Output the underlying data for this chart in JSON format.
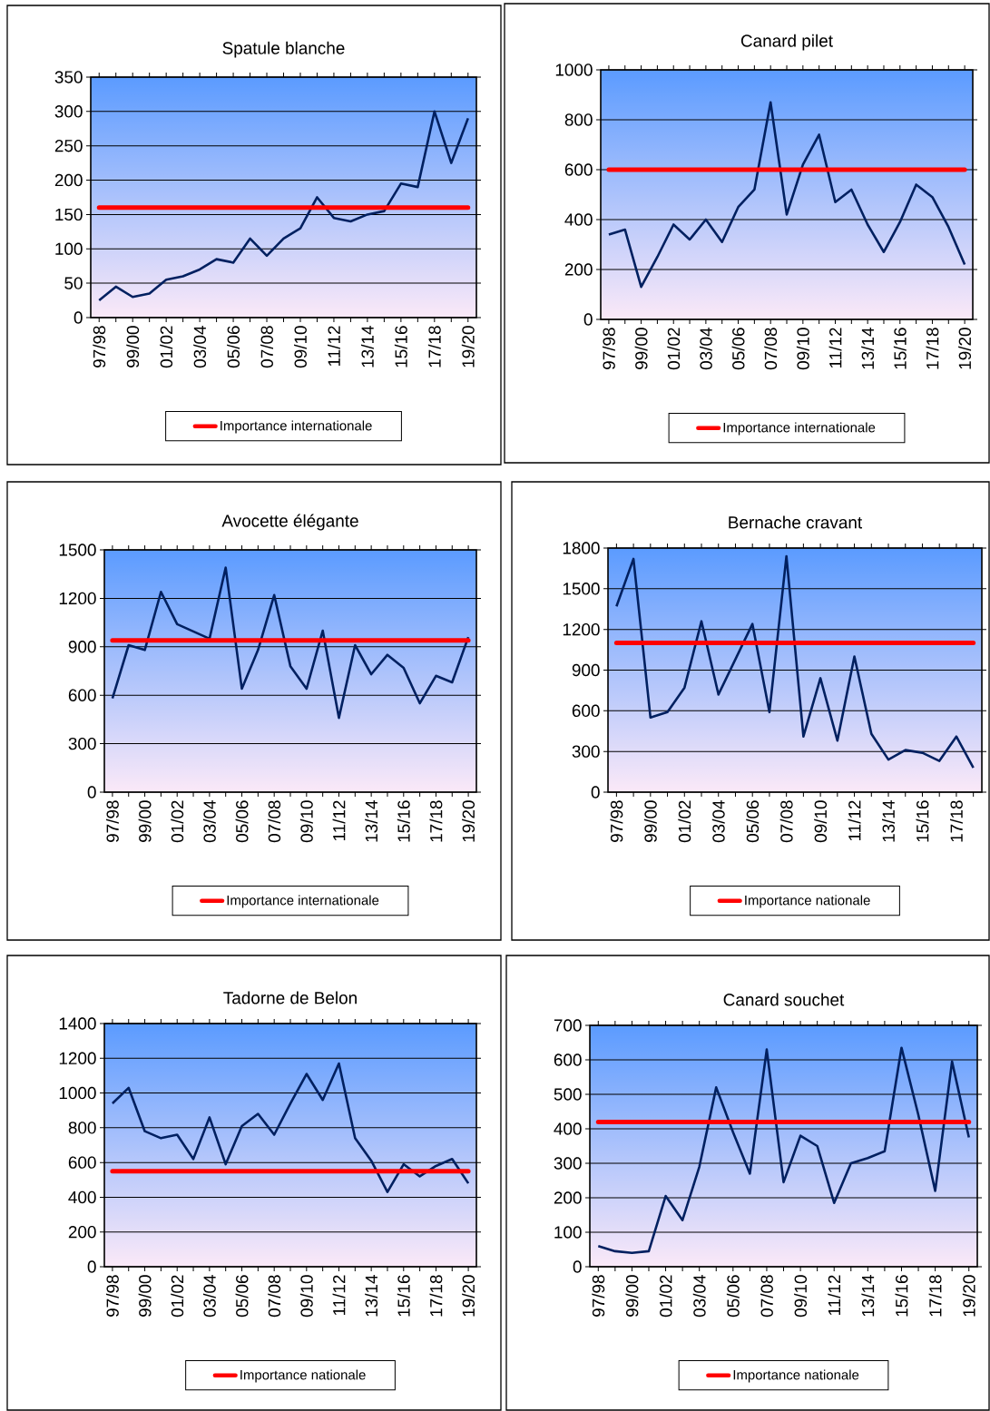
{
  "chart_data": [
    {
      "type": "line",
      "title": "Spatule blanche",
      "categories": [
        "97/98",
        null,
        "99/00",
        null,
        "01/02",
        null,
        "03/04",
        null,
        "05/06",
        null,
        "07/08",
        null,
        "09/10",
        null,
        "11/12",
        null,
        "13/14",
        null,
        "15/16",
        null,
        "17/18",
        null,
        "19/20"
      ],
      "series": [
        {
          "color": "#002060",
          "values": [
            25,
            45,
            30,
            35,
            55,
            60,
            70,
            85,
            80,
            115,
            90,
            115,
            130,
            175,
            145,
            140,
            150,
            155,
            195,
            190,
            300,
            225,
            290
          ]
        }
      ],
      "ylim": [
        0,
        350
      ],
      "yticks": [
        0,
        50,
        100,
        150,
        200,
        250,
        300,
        350
      ],
      "grid": "y",
      "legend": "bottom",
      "ref_lines": [
        {
          "axis": "y",
          "value": 160,
          "label": "Importance internationale",
          "color": "#ff0000"
        }
      ]
    },
    {
      "type": "line",
      "title": "Canard  pilet",
      "categories": [
        "97/98",
        null,
        "99/00",
        null,
        "01/02",
        null,
        "03/04",
        null,
        "05/06",
        null,
        "07/08",
        null,
        "09/10",
        null,
        "11/12",
        null,
        "13/14",
        null,
        "15/16",
        null,
        "17/18",
        null,
        "19/20"
      ],
      "series": [
        {
          "color": "#002060",
          "values": [
            340,
            360,
            130,
            250,
            380,
            320,
            400,
            310,
            450,
            520,
            870,
            420,
            620,
            740,
            470,
            520,
            380,
            270,
            390,
            540,
            490,
            370,
            220
          ]
        }
      ],
      "ylim": [
        0,
        1000
      ],
      "yticks": [
        0,
        200,
        400,
        600,
        800,
        1000
      ],
      "grid": "y",
      "legend": "bottom",
      "ref_lines": [
        {
          "axis": "y",
          "value": 600,
          "label": "Importance internationale",
          "color": "#ff0000"
        }
      ]
    },
    {
      "type": "line",
      "title": "Avocette  élégante",
      "categories": [
        "97/98",
        null,
        "99/00",
        null,
        "01/02",
        null,
        "03/04",
        null,
        "05/06",
        null,
        "07/08",
        null,
        "09/10",
        null,
        "11/12",
        null,
        "13/14",
        null,
        "15/16",
        null,
        "17/18",
        null,
        "19/20"
      ],
      "series": [
        {
          "color": "#002060",
          "values": [
            580,
            910,
            880,
            1240,
            1040,
            null,
            950,
            1390,
            640,
            880,
            1220,
            780,
            640,
            1000,
            460,
            910,
            730,
            850,
            770,
            550,
            720,
            680,
            960
          ]
        }
      ],
      "ylim": [
        0,
        1500
      ],
      "yticks": [
        0,
        300,
        600,
        900,
        1200,
        1500
      ],
      "grid": "y",
      "legend": "bottom",
      "ref_lines": [
        {
          "axis": "y",
          "value": 940,
          "label": "Importance internationale",
          "color": "#ff0000"
        }
      ]
    },
    {
      "type": "line",
      "title": "Bernache  cravant",
      "categories": [
        "97/98",
        null,
        "99/00",
        null,
        "01/02",
        null,
        "03/04",
        null,
        "05/06",
        null,
        "07/08",
        null,
        "09/10",
        null,
        "11/12",
        null,
        "13/14",
        null,
        "15/16",
        null,
        "17/18",
        null
      ],
      "series": [
        {
          "color": "#002060",
          "values": [
            1370,
            1720,
            550,
            590,
            770,
            1260,
            720,
            980,
            1240,
            590,
            1740,
            410,
            840,
            380,
            1000,
            430,
            240,
            310,
            290,
            230,
            410,
            180
          ]
        }
      ],
      "ylim": [
        0,
        1800
      ],
      "yticks": [
        0,
        300,
        600,
        900,
        1200,
        1500,
        1800
      ],
      "grid": "y",
      "legend": "bottom",
      "ref_lines": [
        {
          "axis": "y",
          "value": 1100,
          "label": "Importance nationale",
          "color": "#ff0000"
        }
      ]
    },
    {
      "type": "line",
      "title": "Tadorne  de Belon",
      "categories": [
        "97/98",
        null,
        "99/00",
        null,
        "01/02",
        null,
        "03/04",
        null,
        "05/06",
        null,
        "07/08",
        null,
        "09/10",
        null,
        "11/12",
        null,
        "13/14",
        null,
        "15/16",
        null,
        "17/18",
        null,
        "19/20"
      ],
      "series": [
        {
          "color": "#002060",
          "values": [
            940,
            1030,
            780,
            740,
            760,
            620,
            860,
            590,
            810,
            880,
            760,
            940,
            1110,
            960,
            1170,
            740,
            610,
            430,
            590,
            520,
            580,
            620,
            480
          ]
        }
      ],
      "ylim": [
        0,
        1400
      ],
      "yticks": [
        0,
        200,
        400,
        600,
        800,
        1000,
        1200,
        1400
      ],
      "grid": "y",
      "legend": "bottom",
      "ref_lines": [
        {
          "axis": "y",
          "value": 550,
          "label": "Importance nationale",
          "color": "#ff0000"
        }
      ]
    },
    {
      "type": "line",
      "title": "Canard  souchet",
      "categories": [
        "97/98",
        null,
        "99/00",
        null,
        "01/02",
        null,
        "03/04",
        null,
        "05/06",
        null,
        "07/08",
        null,
        "09/10",
        null,
        "11/12",
        null,
        "13/14",
        null,
        "15/16",
        null,
        "17/18",
        null,
        "19/20"
      ],
      "series": [
        {
          "color": "#002060",
          "values": [
            60,
            45,
            40,
            45,
            205,
            135,
            290,
            520,
            390,
            270,
            630,
            245,
            380,
            350,
            185,
            300,
            315,
            335,
            635,
            440,
            220,
            595,
            375
          ]
        }
      ],
      "ylim": [
        0,
        700
      ],
      "yticks": [
        0,
        100,
        200,
        300,
        400,
        500,
        600,
        700
      ],
      "grid": "y",
      "legend": "bottom",
      "ref_lines": [
        {
          "axis": "y",
          "value": 420,
          "label": "Importance nationale",
          "color": "#ff0000"
        }
      ]
    }
  ]
}
